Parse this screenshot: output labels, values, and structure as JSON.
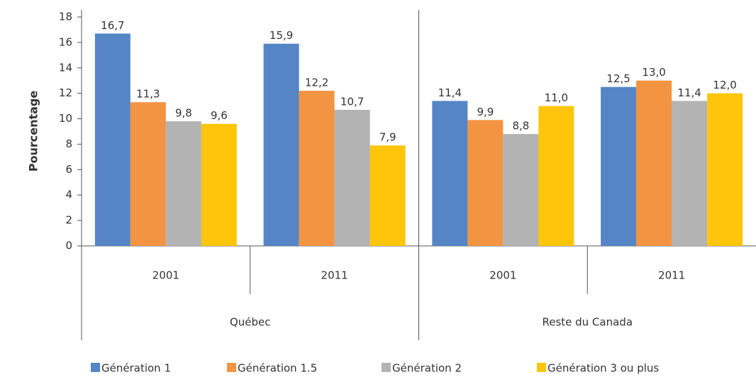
{
  "chart_data": {
    "type": "bar",
    "y_label": "Pourcentage",
    "categories": [
      "2001",
      "2011",
      "2001",
      "2011"
    ],
    "groups": [
      "Québec",
      "Reste du Canada"
    ],
    "series": [
      {
        "name": "Génération 1",
        "color": "#5585c5",
        "values": [
          16.7,
          15.9,
          11.4,
          12.5
        ],
        "value_labels": [
          "16,7",
          "15,9",
          "11,4",
          "12,5"
        ]
      },
      {
        "name": "Génération 1.5",
        "color": "#f29441",
        "values": [
          11.3,
          12.2,
          9.9,
          13.0
        ],
        "value_labels": [
          "11,3",
          "12,2",
          "9,9",
          "13,0"
        ]
      },
      {
        "name": "Génération 2",
        "color": "#b3b3b3",
        "values": [
          9.8,
          10.7,
          8.8,
          11.4
        ],
        "value_labels": [
          "9,8",
          "10,7",
          "8,8",
          "11,4"
        ]
      },
      {
        "name": "Génération 3 ou plus",
        "color": "#ffc50a",
        "values": [
          9.6,
          7.9,
          11.0,
          12.0
        ],
        "value_labels": [
          "9,6",
          "7,9",
          "11,0",
          "12,0"
        ]
      }
    ],
    "ylim": [
      0,
      18
    ],
    "yticks": [
      0,
      2,
      4,
      6,
      8,
      10,
      12,
      14,
      16,
      18
    ],
    "grid": false,
    "legend": "bottom"
  }
}
